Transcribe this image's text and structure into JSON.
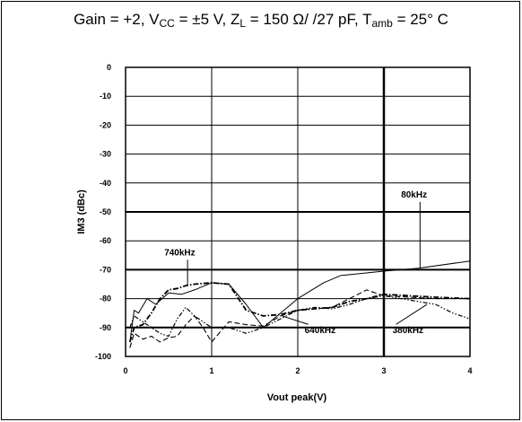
{
  "title": {
    "gain": "Gain = +2, V",
    "vcc_sub": "CC",
    "vcc_val": " = ±5 V, Z",
    "zl_sub": "L",
    "zl_val": " = 150 Ω/ /27 pF, T",
    "tamb_sub": "amb",
    "tamb_val": " = 25° C"
  },
  "chart_data": {
    "type": "line",
    "title": "Gain = +2, VCC = ±5 V, ZL = 150 Ω/ /27 pF, Tamb = 25° C",
    "xlabel": "Vout peak(V)",
    "ylabel": "IM3 (dBc)",
    "xlim": [
      0,
      4
    ],
    "ylim": [
      -100,
      0
    ],
    "xticks": [
      0,
      1,
      2,
      3,
      4
    ],
    "yticks": [
      0,
      -10,
      -20,
      -30,
      -40,
      -50,
      -60,
      -70,
      -80,
      -90,
      -100
    ],
    "grid": true,
    "series": [
      {
        "name": "80kHz",
        "style": "solid",
        "x": [
          0.05,
          0.1,
          0.15,
          0.25,
          0.35,
          0.5,
          0.65,
          0.8,
          1.0,
          1.2,
          1.4,
          1.6,
          1.8,
          2.0,
          2.3,
          2.5,
          3.0,
          3.4,
          4.0
        ],
        "y": [
          -95,
          -84,
          -85,
          -80,
          -82,
          -78,
          -78.5,
          -77,
          -74.5,
          -75,
          -82,
          -90,
          -85,
          -80,
          -74.5,
          -72,
          -70.5,
          -69.5,
          -67
        ]
      },
      {
        "name": "740kHz",
        "style": "dash-dot",
        "x": [
          0.05,
          0.1,
          0.2,
          0.3,
          0.4,
          0.5,
          0.6,
          0.7,
          0.8,
          1.0,
          1.2,
          1.4,
          1.6,
          1.8,
          2.0,
          2.2,
          2.4,
          2.6,
          2.8,
          3.0,
          3.3,
          3.6,
          4.0
        ],
        "y": [
          -95,
          -90,
          -89,
          -85,
          -80,
          -77,
          -76.5,
          -75.5,
          -75,
          -74.5,
          -75,
          -84,
          -86,
          -85.5,
          -84,
          -83.5,
          -83,
          -81,
          -80,
          -78.5,
          -79,
          -79.5,
          -80
        ]
      },
      {
        "name": "640kHz",
        "style": "dashed",
        "x": [
          0.05,
          0.1,
          0.2,
          0.3,
          0.4,
          0.5,
          0.6,
          0.7,
          0.8,
          0.9,
          1.0,
          1.2,
          1.4,
          1.6,
          1.8,
          2.0,
          2.2,
          2.4,
          2.6,
          2.8,
          3.0,
          3.3,
          3.6,
          4.0
        ],
        "y": [
          -97,
          -92,
          -94,
          -93,
          -95,
          -93.5,
          -93,
          -89,
          -86,
          -90,
          -95,
          -88,
          -89,
          -89.5,
          -86,
          -84,
          -83.5,
          -83,
          -80,
          -77,
          -79,
          -79.5,
          -80,
          -80
        ]
      },
      {
        "name": "380kHz",
        "style": "dash-dot-dot",
        "x": [
          0.05,
          0.1,
          0.2,
          0.3,
          0.4,
          0.5,
          0.6,
          0.7,
          0.8,
          0.9,
          1.0,
          1.2,
          1.4,
          1.6,
          1.8,
          2.0,
          2.2,
          2.4,
          2.6,
          2.8,
          3.0,
          3.4,
          3.6,
          3.8,
          4.0
        ],
        "y": [
          -90,
          -86,
          -88,
          -90,
          -92,
          -93,
          -87,
          -83,
          -86,
          -88,
          -90,
          -90,
          -92,
          -90,
          -87,
          -84,
          -83,
          -83.5,
          -82,
          -80,
          -79,
          -81,
          -82,
          -85,
          -87
        ]
      }
    ],
    "annotations": [
      {
        "label": "80kHz",
        "text_x": 3.2,
        "text_y": -45,
        "arrow_to": [
          3.42,
          -69.5
        ]
      },
      {
        "label": "740kHz",
        "text_x": 0.45,
        "text_y": -65,
        "arrow_to": [
          0.72,
          -75.5
        ]
      },
      {
        "label": "640kHz",
        "text_x": 2.08,
        "text_y": -92,
        "arrow_to": [
          1.82,
          -86
        ]
      },
      {
        "label": "380kHz",
        "text_x": 3.1,
        "text_y": -92,
        "arrow_to": [
          3.5,
          -82
        ]
      }
    ]
  }
}
